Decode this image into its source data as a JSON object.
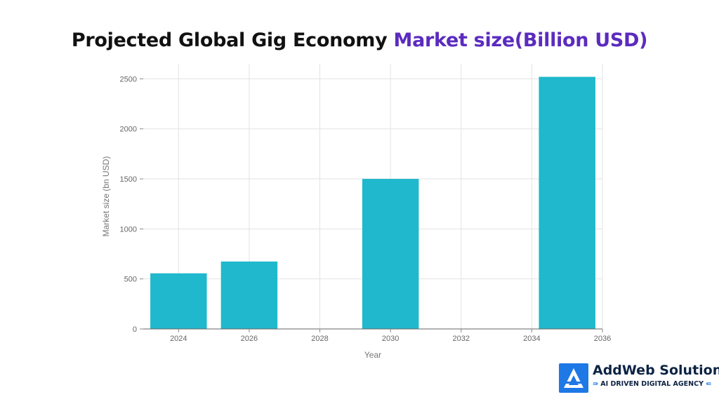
{
  "chart_data": {
    "type": "bar",
    "title_part1": "Projected Global Gig Economy",
    "title_part2": "Market size(Billion USD)",
    "xlabel": "Year",
    "ylabel": "Market size (bn USD)",
    "x_ticks": [
      "2024",
      "2026",
      "2028",
      "2030",
      "2032",
      "2034",
      "2036"
    ],
    "y_ticks": [
      "0",
      "500",
      "1000",
      "1500",
      "2000",
      "2500"
    ],
    "xlim": [
      2023,
      2036
    ],
    "ylim": [
      0,
      2650
    ],
    "bar_width_years": 1.6,
    "grid": true,
    "bar_color": "#20b8cc",
    "title_colors": [
      "#111111",
      "#5b2bbf"
    ],
    "bars": [
      {
        "x": 2024,
        "value": 556
      },
      {
        "x": 2026,
        "value": 674
      },
      {
        "x": 2030,
        "value": 1500
      },
      {
        "x": 2035,
        "value": 2520
      }
    ]
  },
  "brand": {
    "name": "AddWeb Solution",
    "tagline": "AI DRIVEN DIGITAL AGENCY",
    "logo_icon": "addweb-logo-icon",
    "color": "#1e78e6"
  }
}
